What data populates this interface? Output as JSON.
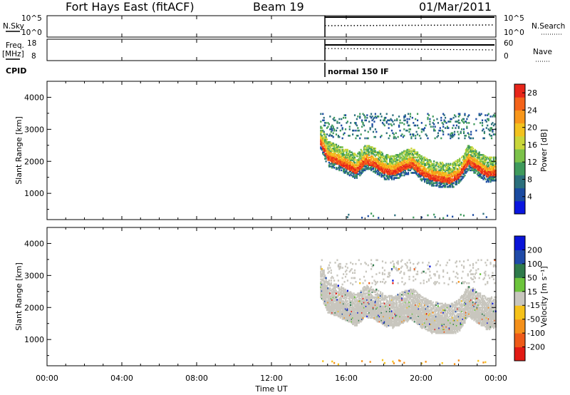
{
  "header": {
    "station": "Fort Hays East (fitACF)",
    "beam": "Beam 19",
    "date": "01/Mar/2011"
  },
  "top_panels": {
    "nsky_label": "N.Sky",
    "nsky_ticks": [
      "10^5",
      "10^0"
    ],
    "nsearch_label": "N.Search",
    "nsearch_ticks": [
      "10^5",
      "10^0"
    ],
    "freq_label": "Freq.",
    "freq_unit": "[MHz]",
    "freq_ticks": [
      "18",
      "8"
    ],
    "nave_label": "Nave",
    "nave_ticks": [
      "60",
      "0"
    ],
    "cpid_label": "CPID",
    "cpid_value": "normal 150 IF"
  },
  "panels": {
    "power": {
      "ylabel": "Slant Range [km]",
      "cbar_label": "Power [dB]"
    },
    "velocity": {
      "ylabel": "Slant Range [km]",
      "cbar_label": "Velocity [m s⁻¹]"
    }
  },
  "x_axis": {
    "label": "Time UT",
    "tick_labels": [
      "00:00",
      "04:00",
      "08:00",
      "12:00",
      "16:00",
      "20:00",
      "00:00"
    ]
  },
  "chart_data": [
    {
      "type": "heatmap",
      "title": "",
      "name": "power",
      "xlabel": "Time UT",
      "ylabel": "Slant Range [km]",
      "xlim_hours": [
        0,
        24
      ],
      "ylim_km": [
        180,
        4500
      ],
      "y_ticks": [
        1000,
        2000,
        3000,
        4000
      ],
      "data_start_hour": 14.6,
      "data_end_hour": 24,
      "colorbar": {
        "label": "Power [dB]",
        "ticks": [
          4,
          8,
          12,
          16,
          20,
          24,
          28
        ],
        "range": [
          0,
          30
        ],
        "colors": [
          "#0a16e0",
          "#1a4aa0",
          "#2b6f7c",
          "#3f9a5c",
          "#7cc24a",
          "#c9d63a",
          "#f2c21e",
          "#f8961a",
          "#f4631a",
          "#e8261a"
        ]
      },
      "echo_band_center_km": [
        [
          14.6,
          2600
        ],
        [
          15.0,
          2100
        ],
        [
          15.5,
          2000
        ],
        [
          16.0,
          1850
        ],
        [
          16.5,
          1700
        ],
        [
          17.0,
          2000
        ],
        [
          17.5,
          1900
        ],
        [
          18.0,
          1700
        ],
        [
          18.5,
          1650
        ],
        [
          19.0,
          1800
        ],
        [
          19.5,
          1900
        ],
        [
          20.0,
          1650
        ],
        [
          20.5,
          1500
        ],
        [
          21.0,
          1450
        ],
        [
          21.5,
          1400
        ],
        [
          22.0,
          1550
        ],
        [
          22.5,
          2000
        ],
        [
          23.0,
          1800
        ],
        [
          23.5,
          1600
        ],
        [
          24.0,
          1650
        ]
      ]
    },
    {
      "type": "heatmap",
      "title": "",
      "name": "velocity",
      "xlabel": "Time UT",
      "ylabel": "Slant Range [km]",
      "xlim_hours": [
        0,
        24
      ],
      "ylim_km": [
        180,
        4500
      ],
      "y_ticks": [
        1000,
        2000,
        3000,
        4000
      ],
      "data_start_hour": 14.6,
      "data_end_hour": 24,
      "colorbar": {
        "label": "Velocity [m s⁻¹]",
        "ticks": [
          200,
          100,
          50,
          15,
          -15,
          -50,
          -100,
          -200
        ],
        "colors": [
          "#0a14d8",
          "#1f4aa8",
          "#2e7a4a",
          "#6cc43c",
          "#c8c6be",
          "#f6c21a",
          "#f4901a",
          "#ee5a18",
          "#e21a14"
        ]
      },
      "dominant_class": "ground scatter (grey)"
    },
    {
      "type": "line",
      "title": "",
      "name": "nsky_nsearch",
      "series": []
    }
  ]
}
